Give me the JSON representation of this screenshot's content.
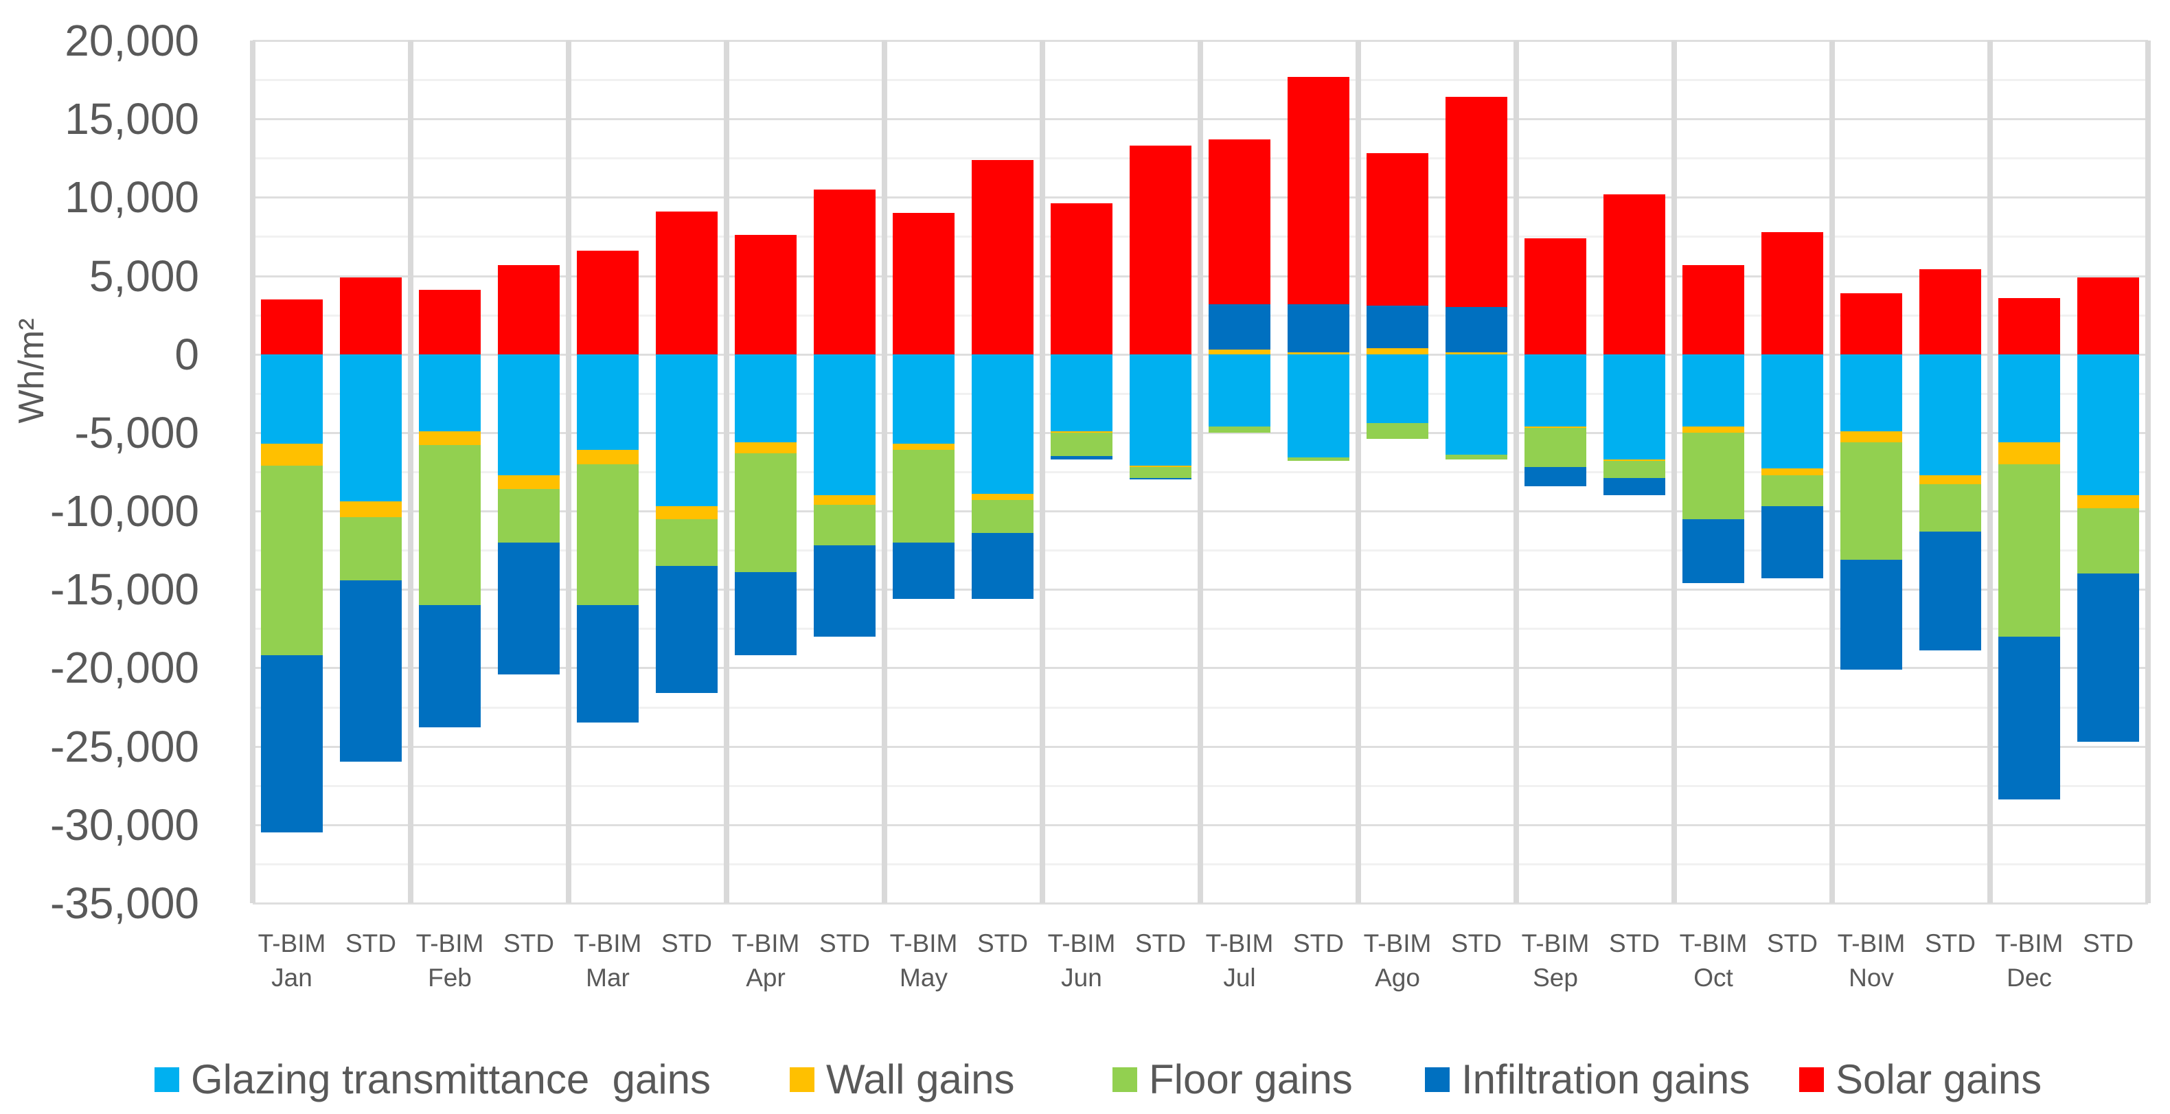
{
  "chart_data": {
    "type": "bar",
    "stacked": true,
    "title": "",
    "xlabel": "",
    "ylabel": "Wh/m²",
    "ylim": [
      -35000,
      20000
    ],
    "ytick_step": 5000,
    "minor_grid_step": 2500,
    "grid": true,
    "legend_position": "bottom",
    "ytick_labels": [
      "20,000",
      "15,000",
      "10,000",
      "5,000",
      "0",
      "-5,000",
      "-10,000",
      "-15,000",
      "-20,000",
      "-25,000",
      "-30,000",
      "-35,000"
    ],
    "months": [
      "Jan",
      "Feb",
      "Mar",
      "Apr",
      "May",
      "Jun",
      "Jul",
      "Ago",
      "Sep",
      "Oct",
      "Nov",
      "Dec"
    ],
    "variants": [
      "T-BIM",
      "STD"
    ],
    "bar_order_note": "values arrays are ordered Jan T-BIM, Jan STD, Feb T-BIM, Feb STD, ... Dec T-BIM, Dec STD (Wh/m2)",
    "series": [
      {
        "key": "glazing",
        "name": "Glazing transmittance  gains",
        "color": "#00B0F0",
        "values": [
          -5700,
          -9400,
          -4900,
          -7700,
          -6100,
          -9700,
          -5600,
          -9000,
          -5700,
          -8900,
          -4900,
          -7100,
          -4600,
          -6600,
          -4400,
          -6400,
          -4600,
          -6700,
          -4600,
          -7300,
          -4900,
          -7700,
          -5600,
          -9000
        ]
      },
      {
        "key": "wall",
        "name": "Wall gains",
        "color": "#FFC000",
        "values": [
          -1400,
          -1000,
          -900,
          -900,
          -900,
          -800,
          -700,
          -600,
          -400,
          -400,
          -100,
          -100,
          300,
          100,
          400,
          100,
          -100,
          -100,
          -400,
          -400,
          -700,
          -600,
          -1400,
          -800
        ]
      },
      {
        "key": "floor",
        "name": "Floor gains",
        "color": "#92D050",
        "values": [
          -12100,
          -4000,
          -10200,
          -3400,
          -9000,
          -3000,
          -7600,
          -2600,
          -5900,
          -2100,
          -1500,
          -700,
          -400,
          -200,
          -1000,
          -300,
          -2500,
          -1100,
          -5500,
          -2000,
          -7500,
          -3000,
          -11000,
          -4200
        ]
      },
      {
        "key": "infiltration",
        "name": "Infiltration gains",
        "color": "#0070C0",
        "values": [
          -11300,
          -11600,
          -7800,
          -8400,
          -7500,
          -8100,
          -5300,
          -5800,
          -3600,
          -4200,
          -200,
          -100,
          2900,
          3100,
          2700,
          2900,
          -1200,
          -1100,
          -4100,
          -4600,
          -7000,
          -7600,
          -10400,
          -10700
        ]
      },
      {
        "key": "solar",
        "name": "Solar gains",
        "color": "#FF0000",
        "values": [
          3500,
          4900,
          4100,
          5700,
          6600,
          9100,
          7600,
          10500,
          9000,
          12400,
          9600,
          13300,
          10500,
          14500,
          9700,
          13400,
          7400,
          10200,
          5700,
          7800,
          3900,
          5400,
          3600,
          4900
        ]
      }
    ]
  }
}
